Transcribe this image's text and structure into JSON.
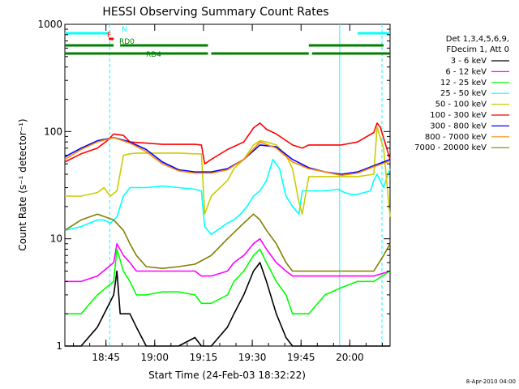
{
  "chart_data": {
    "type": "line",
    "title": "HESSI Observing Summary Count Rates",
    "xlabel": "Start Time (24-Feb-03 18:32:22)",
    "ylabel": "Count Rate (s⁻¹ detector⁻¹)",
    "yscale": "log",
    "ylim": [
      1,
      1000
    ],
    "xlim_minutes": [
      0,
      100
    ],
    "grid": false,
    "legend_position": "right",
    "footer": "8-Apr-2010 04:00",
    "legend_header": [
      "Det 1,3,4,5,6,9,",
      "FDecim 1, Att 0"
    ],
    "x_ticks": [
      {
        "t": 12.63,
        "label": "18:45"
      },
      {
        "t": 27.63,
        "label": "19:00"
      },
      {
        "t": 42.63,
        "label": "19:15"
      },
      {
        "t": 57.63,
        "label": "19:30"
      },
      {
        "t": 72.63,
        "label": "19:45"
      },
      {
        "t": 87.63,
        "label": "20:00"
      }
    ],
    "y_ticks": [
      {
        "v": 1,
        "label": "1"
      },
      {
        "v": 10,
        "label": "10"
      },
      {
        "v": 100,
        "label": "100"
      },
      {
        "v": 1000,
        "label": "1000"
      }
    ],
    "series": [
      {
        "name": "3 - 6 keV",
        "color": "#000000",
        "x": [
          0,
          5,
          10,
          15,
          16,
          17,
          20,
          22,
          25,
          30,
          35,
          40,
          42,
          45,
          50,
          52,
          55,
          58,
          60,
          62,
          65,
          68,
          70,
          75,
          80,
          85,
          90,
          95,
          100
        ],
        "values": [
          1,
          1,
          1.5,
          3,
          5,
          2,
          2,
          1.5,
          1,
          1,
          1,
          1.2,
          1,
          1,
          1.5,
          2,
          3,
          5,
          6,
          4,
          2,
          1.2,
          1,
          1,
          1,
          1,
          1,
          1,
          1
        ]
      },
      {
        "name": "6 - 12 keV",
        "color": "#ff00ff",
        "x": [
          0,
          5,
          10,
          15,
          16,
          18,
          20,
          22,
          25,
          30,
          35,
          40,
          42,
          45,
          50,
          52,
          55,
          58,
          60,
          62,
          65,
          68,
          70,
          75,
          80,
          85,
          90,
          95,
          100
        ],
        "values": [
          4,
          4,
          4.5,
          6,
          9,
          7,
          6,
          5,
          5,
          5,
          5,
          5,
          4.5,
          4.5,
          5,
          6,
          7,
          9,
          10,
          8,
          6,
          5,
          4.5,
          4.5,
          4.5,
          4.5,
          4.5,
          4.5,
          5
        ]
      },
      {
        "name": "12 - 25 keV",
        "color": "#00ff00",
        "x": [
          0,
          5,
          10,
          15,
          16,
          18,
          20,
          22,
          25,
          30,
          35,
          40,
          42,
          45,
          50,
          52,
          55,
          58,
          60,
          62,
          65,
          68,
          70,
          75,
          80,
          85,
          90,
          95,
          100
        ],
        "values": [
          2,
          2,
          3,
          4,
          8,
          5,
          4,
          3,
          3,
          3.2,
          3.2,
          3,
          2.5,
          2.5,
          3,
          4,
          5,
          7,
          8,
          6,
          4,
          3,
          2,
          2,
          3,
          3.5,
          4,
          4,
          5
        ]
      },
      {
        "name": "25 - 50 keV",
        "color": "#00ffff",
        "x": [
          0,
          5,
          10,
          12,
          14,
          16,
          18,
          20,
          22,
          25,
          30,
          35,
          40,
          42,
          43,
          45,
          50,
          52,
          54,
          56,
          58,
          60,
          62,
          64,
          66,
          68,
          70,
          72,
          73,
          75,
          80,
          84,
          86,
          88,
          90,
          92,
          94,
          95,
          96,
          98,
          100
        ],
        "values": [
          12,
          13,
          15,
          15,
          14,
          16,
          25,
          30,
          30,
          30,
          31,
          30,
          29,
          28,
          13,
          11,
          14,
          15,
          17,
          20,
          25,
          28,
          35,
          55,
          45,
          25,
          20,
          17,
          28,
          28,
          28,
          29,
          27,
          26,
          26,
          27,
          28,
          35,
          40,
          30,
          45
        ]
      },
      {
        "name": "50 - 100 keV",
        "color": "#cccc00",
        "x": [
          0,
          5,
          10,
          12,
          14,
          16,
          18,
          20,
          22,
          25,
          30,
          35,
          40,
          42,
          43,
          45,
          50,
          52,
          55,
          58,
          60,
          62,
          65,
          68,
          70,
          72,
          73,
          75,
          80,
          85,
          90,
          95,
          96,
          98,
          100
        ],
        "values": [
          25,
          25,
          27,
          30,
          25,
          28,
          60,
          62,
          63,
          63,
          63,
          63,
          62,
          62,
          17,
          25,
          35,
          45,
          55,
          75,
          82,
          80,
          75,
          60,
          45,
          22,
          17,
          38,
          38,
          38,
          38,
          40,
          110,
          70,
          16
        ]
      },
      {
        "name": "100 - 300 keV",
        "color": "#ff0000",
        "x": [
          0,
          5,
          10,
          13,
          15,
          18,
          20,
          25,
          30,
          35,
          40,
          42,
          43,
          45,
          50,
          55,
          58,
          60,
          62,
          65,
          70,
          73,
          75,
          80,
          85,
          90,
          95,
          96,
          97,
          100
        ],
        "values": [
          52,
          62,
          70,
          82,
          95,
          92,
          80,
          78,
          76,
          76,
          76,
          75,
          50,
          55,
          68,
          80,
          108,
          120,
          105,
          95,
          75,
          70,
          75,
          75,
          75,
          80,
          98,
          120,
          110,
          55
        ]
      },
      {
        "name": "300 - 800 keV",
        "color": "#0000ff",
        "x": [
          0,
          5,
          10,
          15,
          20,
          25,
          30,
          35,
          40,
          45,
          50,
          55,
          60,
          65,
          70,
          75,
          80,
          85,
          90,
          95,
          100
        ],
        "values": [
          58,
          70,
          82,
          88,
          80,
          68,
          52,
          44,
          42,
          42,
          45,
          55,
          75,
          72,
          55,
          46,
          42,
          40,
          42,
          48,
          55
        ]
      },
      {
        "name": "800 - 7000 keV",
        "color": "#ff8800",
        "x": [
          0,
          5,
          10,
          15,
          20,
          25,
          30,
          35,
          40,
          45,
          50,
          55,
          60,
          65,
          70,
          75,
          80,
          85,
          90,
          95,
          100
        ],
        "values": [
          55,
          68,
          80,
          88,
          78,
          65,
          50,
          43,
          41,
          41,
          44,
          55,
          80,
          70,
          52,
          45,
          42,
          39,
          41,
          47,
          53
        ]
      },
      {
        "name": "7000 - 20000 keV",
        "color": "#808000",
        "x": [
          0,
          5,
          10,
          15,
          18,
          20,
          22,
          25,
          30,
          35,
          40,
          45,
          50,
          55,
          58,
          60,
          62,
          65,
          68,
          70,
          75,
          80,
          85,
          90,
          95,
          98,
          100
        ],
        "values": [
          12,
          15,
          17,
          15,
          12,
          9,
          7,
          5.5,
          5.3,
          5.5,
          5.8,
          7,
          10,
          14,
          17,
          15,
          12,
          9,
          6,
          5,
          5,
          5,
          5,
          5,
          5,
          7,
          9
        ]
      }
    ],
    "flag_bars": [
      {
        "label": "N",
        "color": "#00ffff",
        "segments": [
          [
            0,
            13.5
          ],
          [
            90,
            100
          ]
        ]
      },
      {
        "label": "F",
        "color": "#ff0000",
        "segments": [
          [
            13.5,
            15
          ]
        ]
      },
      {
        "label": "RD0",
        "color": "#008000",
        "segments": [
          [
            0,
            15
          ],
          [
            17,
            44
          ],
          [
            75,
            98
          ]
        ]
      },
      {
        "label": "RD4",
        "color": "#008000",
        "segments": [
          [
            0,
            44
          ],
          [
            45,
            75
          ],
          [
            76,
            100
          ]
        ]
      }
    ],
    "dashed_vlines_minutes": [
      13.8,
      97.5
    ],
    "solid_vlines_minutes": [
      84.5
    ]
  }
}
